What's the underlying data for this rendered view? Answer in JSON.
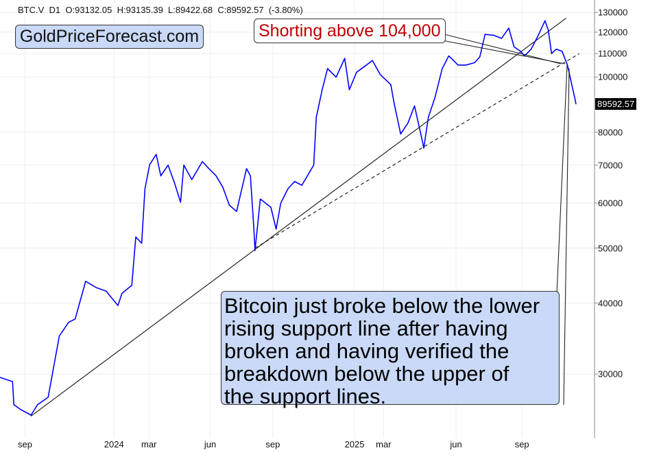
{
  "header": {
    "symbol": "BTC.V",
    "timeframe": "D1",
    "open": "O:93132.05",
    "high": "H:93135.39",
    "low": "L:89422.68",
    "close": "C:89592.57",
    "change": "(-3.80%)"
  },
  "logo_text": "GoldPriceForecast.com",
  "last_price_label": "89592.57",
  "colors": {
    "price": "#0000ff",
    "logo_bg": "#c9d9f7",
    "callout_text": "#c00000"
  },
  "chart_data": {
    "type": "line",
    "title": "BTC.V D1",
    "xlabel": "",
    "ylabel": "",
    "y_scale": "log",
    "ylim": [
      23170,
      136700
    ],
    "x_unit": "days since start of visible range",
    "xlim": [
      0,
      874
    ],
    "grid": true,
    "y_ticks": [
      30000,
      40000,
      50000,
      60000,
      70000,
      80000,
      100000,
      110000,
      120000,
      130000
    ],
    "y_tick_labels": [
      "30000",
      "40000",
      "50000",
      "60000",
      "70000",
      "80000",
      "100000",
      "110000",
      "120000",
      "130000"
    ],
    "x_ticks": [
      {
        "day": 38,
        "label": "sep"
      },
      {
        "day": 173,
        "label": "2024"
      },
      {
        "day": 226,
        "label": "mar"
      },
      {
        "day": 319,
        "label": "jun"
      },
      {
        "day": 414,
        "label": "sep"
      },
      {
        "day": 538,
        "label": "2025"
      },
      {
        "day": 582,
        "label": "mar"
      },
      {
        "day": 692,
        "label": "jun"
      },
      {
        "day": 792,
        "label": "sep"
      }
    ],
    "series": [
      {
        "name": "BTC.V close",
        "points": [
          [
            0,
            29600
          ],
          [
            19,
            29100
          ],
          [
            21,
            26500
          ],
          [
            31,
            26000
          ],
          [
            47,
            25400
          ],
          [
            57,
            26500
          ],
          [
            73,
            27300
          ],
          [
            90,
            35000
          ],
          [
            104,
            37000
          ],
          [
            114,
            37500
          ],
          [
            130,
            43700
          ],
          [
            146,
            42600
          ],
          [
            161,
            42000
          ],
          [
            179,
            39600
          ],
          [
            185,
            41600
          ],
          [
            200,
            43000
          ],
          [
            206,
            52300
          ],
          [
            215,
            51000
          ],
          [
            220,
            63600
          ],
          [
            227,
            70100
          ],
          [
            237,
            73100
          ],
          [
            244,
            67000
          ],
          [
            255,
            70000
          ],
          [
            265,
            65000
          ],
          [
            274,
            60200
          ],
          [
            279,
            70000
          ],
          [
            291,
            66000
          ],
          [
            307,
            71000
          ],
          [
            317,
            69000
          ],
          [
            328,
            67000
          ],
          [
            338,
            64000
          ],
          [
            348,
            59500
          ],
          [
            359,
            58000
          ],
          [
            374,
            69000
          ],
          [
            380,
            67000
          ],
          [
            385,
            54600
          ],
          [
            387,
            49500
          ],
          [
            395,
            61000
          ],
          [
            411,
            59000
          ],
          [
            419,
            54000
          ],
          [
            426,
            60000
          ],
          [
            437,
            63600
          ],
          [
            447,
            65500
          ],
          [
            458,
            64500
          ],
          [
            476,
            70000
          ],
          [
            480,
            85000
          ],
          [
            489,
            95200
          ],
          [
            497,
            103500
          ],
          [
            510,
            100000
          ],
          [
            523,
            107900
          ],
          [
            530,
            95000
          ],
          [
            541,
            102000
          ],
          [
            556,
            105000
          ],
          [
            565,
            107000
          ],
          [
            577,
            101000
          ],
          [
            593,
            97000
          ],
          [
            598,
            90000
          ],
          [
            608,
            79400
          ],
          [
            619,
            83000
          ],
          [
            629,
            89000
          ],
          [
            640,
            78000
          ],
          [
            643,
            75000
          ],
          [
            650,
            85000
          ],
          [
            660,
            92000
          ],
          [
            671,
            103500
          ],
          [
            681,
            109000
          ],
          [
            695,
            105000
          ],
          [
            707,
            105000
          ],
          [
            720,
            106000
          ],
          [
            728,
            108500
          ],
          [
            736,
            118900
          ],
          [
            749,
            118500
          ],
          [
            761,
            117000
          ],
          [
            772,
            122000
          ],
          [
            780,
            113000
          ],
          [
            790,
            111000
          ],
          [
            796,
            109000
          ],
          [
            806,
            112000
          ],
          [
            816,
            118000
          ],
          [
            827,
            125700
          ],
          [
            832,
            121000
          ],
          [
            837,
            110000
          ],
          [
            844,
            112000
          ],
          [
            853,
            111000
          ],
          [
            861,
            105000
          ],
          [
            865,
            100000
          ],
          [
            872,
            92000
          ],
          [
            874,
            89592.57
          ]
        ]
      }
    ],
    "trendlines": [
      {
        "name": "upper support line",
        "style": "solid",
        "from": [
          47,
          25300
        ],
        "to": [
          859,
          127000
        ]
      },
      {
        "name": "lower support line",
        "style": "dashed",
        "from": [
          387,
          50000
        ],
        "to": [
          879,
          110000
        ]
      }
    ],
    "annotations": [
      {
        "name": "shorting",
        "text": "Shorting above 104,000"
      },
      {
        "name": "comment",
        "lines": [
          "Bitcoin just broke below the lower",
          "rising support line after having",
          "broken and having verified the",
          "breakdown below the upper of",
          "the support lines."
        ]
      }
    ]
  }
}
